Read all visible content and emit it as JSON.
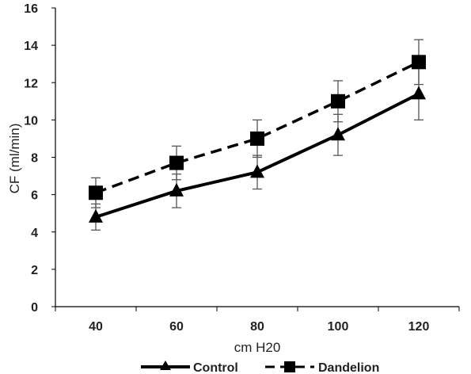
{
  "chart_data": {
    "type": "line",
    "xlabel": "cm H20",
    "ylabel": "CF (ml/min)",
    "x": [
      40,
      60,
      80,
      100,
      120
    ],
    "ylim": [
      0,
      16
    ],
    "yticks": [
      0,
      2,
      4,
      6,
      8,
      10,
      12,
      14,
      16
    ],
    "grid": false,
    "legend_position": "bottom",
    "series": [
      {
        "name": "Control",
        "values": [
          4.8,
          6.2,
          7.2,
          9.2,
          11.4
        ],
        "error": [
          0.7,
          0.9,
          0.9,
          1.1,
          1.4
        ],
        "line_style": "solid",
        "marker": "triangle",
        "color": "#000000"
      },
      {
        "name": "Dandelion",
        "values": [
          6.1,
          7.7,
          9.0,
          11.0,
          13.1
        ],
        "error": [
          0.8,
          0.9,
          1.0,
          1.1,
          1.2
        ],
        "line_style": "dashed",
        "marker": "square",
        "color": "#000000"
      }
    ]
  }
}
